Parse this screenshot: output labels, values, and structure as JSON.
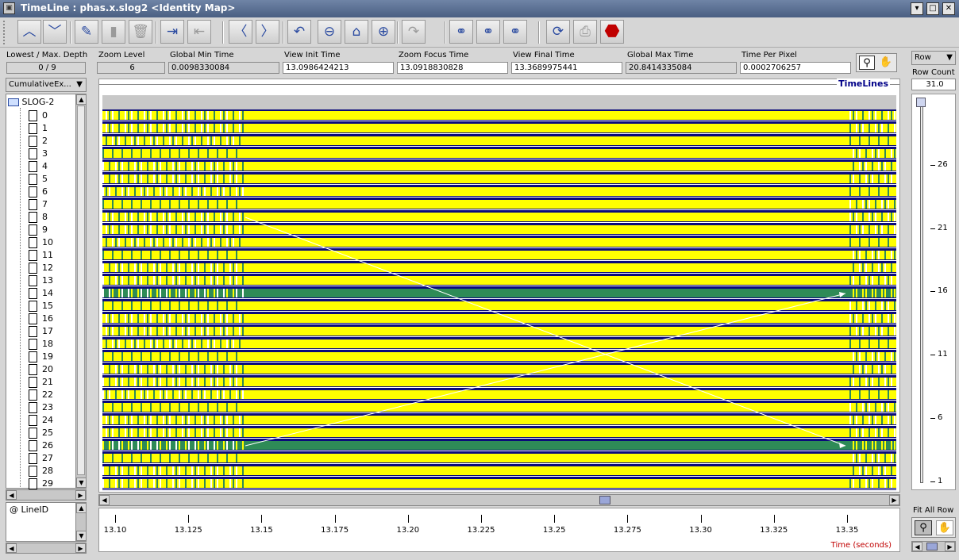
{
  "window": {
    "title": "TimeLine : phas.x.slog2  <Identity Map>",
    "controls": [
      "minimize-icon",
      "maximize-icon",
      "close-icon"
    ]
  },
  "toolbar": {
    "buttons": [
      {
        "name": "scroll-up-icon",
        "glyph": "︿",
        "enabled": true
      },
      {
        "name": "scroll-down-icon",
        "glyph": "﹀",
        "enabled": true
      },
      {
        "name": "edit-icon",
        "glyph": "✎",
        "enabled": true
      },
      {
        "name": "clipboard-icon",
        "glyph": "▮",
        "enabled": false
      },
      {
        "name": "delete-icon",
        "glyph": "🗑",
        "enabled": false
      },
      {
        "name": "export-icon",
        "glyph": "⇥",
        "enabled": true
      },
      {
        "name": "import-icon",
        "glyph": "⇤",
        "enabled": false
      },
      {
        "name": "back-icon",
        "glyph": "〈",
        "enabled": true
      },
      {
        "name": "forward-icon",
        "glyph": "〉",
        "enabled": true
      },
      {
        "name": "undo-icon",
        "glyph": "↶",
        "enabled": true
      },
      {
        "name": "zoom-out-icon",
        "glyph": "⊖",
        "enabled": true
      },
      {
        "name": "home-icon",
        "glyph": "⌂",
        "enabled": true
      },
      {
        "name": "zoom-in-icon",
        "glyph": "⊕",
        "enabled": true
      },
      {
        "name": "redo-icon",
        "glyph": "↷",
        "enabled": false
      },
      {
        "name": "search-back-icon",
        "glyph": "⚭",
        "enabled": true
      },
      {
        "name": "search-icon",
        "glyph": "⚭",
        "enabled": true
      },
      {
        "name": "search-forward-icon",
        "glyph": "⚭",
        "enabled": true
      },
      {
        "name": "refresh-icon",
        "glyph": "⟳",
        "enabled": true
      },
      {
        "name": "print-icon",
        "glyph": "⎙",
        "enabled": false
      },
      {
        "name": "stop-icon",
        "glyph": "⬣",
        "enabled": true
      }
    ]
  },
  "depth": {
    "label": "Lowest / Max. Depth",
    "value": "0 / 9"
  },
  "info_fields": [
    {
      "label": "Zoom Level",
      "value": "6"
    },
    {
      "label": "Global Min Time",
      "value": "0.0098330084"
    },
    {
      "label": "View  Init Time",
      "value": "13.0986424213"
    },
    {
      "label": "Zoom Focus Time",
      "value": "13.0918830828"
    },
    {
      "label": "View Final Time",
      "value": "13.3689975441"
    },
    {
      "label": "Global Max Time",
      "value": "20.8414335084"
    },
    {
      "label": "Time Per Pixel",
      "value": "0.0002706257"
    }
  ],
  "left": {
    "combo": "CumulativeEx...",
    "tree_root": "SLOG-2",
    "rows": [
      "0",
      "1",
      "2",
      "3",
      "4",
      "5",
      "6",
      "7",
      "8",
      "9",
      "10",
      "11",
      "12",
      "13",
      "14",
      "15",
      "16",
      "17",
      "18",
      "19",
      "20",
      "21",
      "22",
      "23",
      "24",
      "25",
      "26",
      "27",
      "28",
      "29"
    ],
    "legend": "@ LineID"
  },
  "timelines_title": "TimeLines",
  "highlighted_rows": [
    14,
    26
  ],
  "colors": {
    "state": "#ffff00",
    "line": "#0a0a7a",
    "highlight": "#2e8b57",
    "arrow": "#ffffff"
  },
  "axis": {
    "ticks": [
      "13.10",
      "13.125",
      "13.15",
      "13.175",
      "13.20",
      "13.225",
      "13.25",
      "13.275",
      "13.30",
      "13.325",
      "13.35"
    ],
    "title": "Time (seconds)"
  },
  "right": {
    "combo": "Row",
    "row_count_label": "Row Count",
    "row_count": "31.0",
    "ticks": [
      "26",
      "21",
      "16",
      "11",
      "6",
      "1"
    ],
    "fit_label": "Fit All Row"
  }
}
